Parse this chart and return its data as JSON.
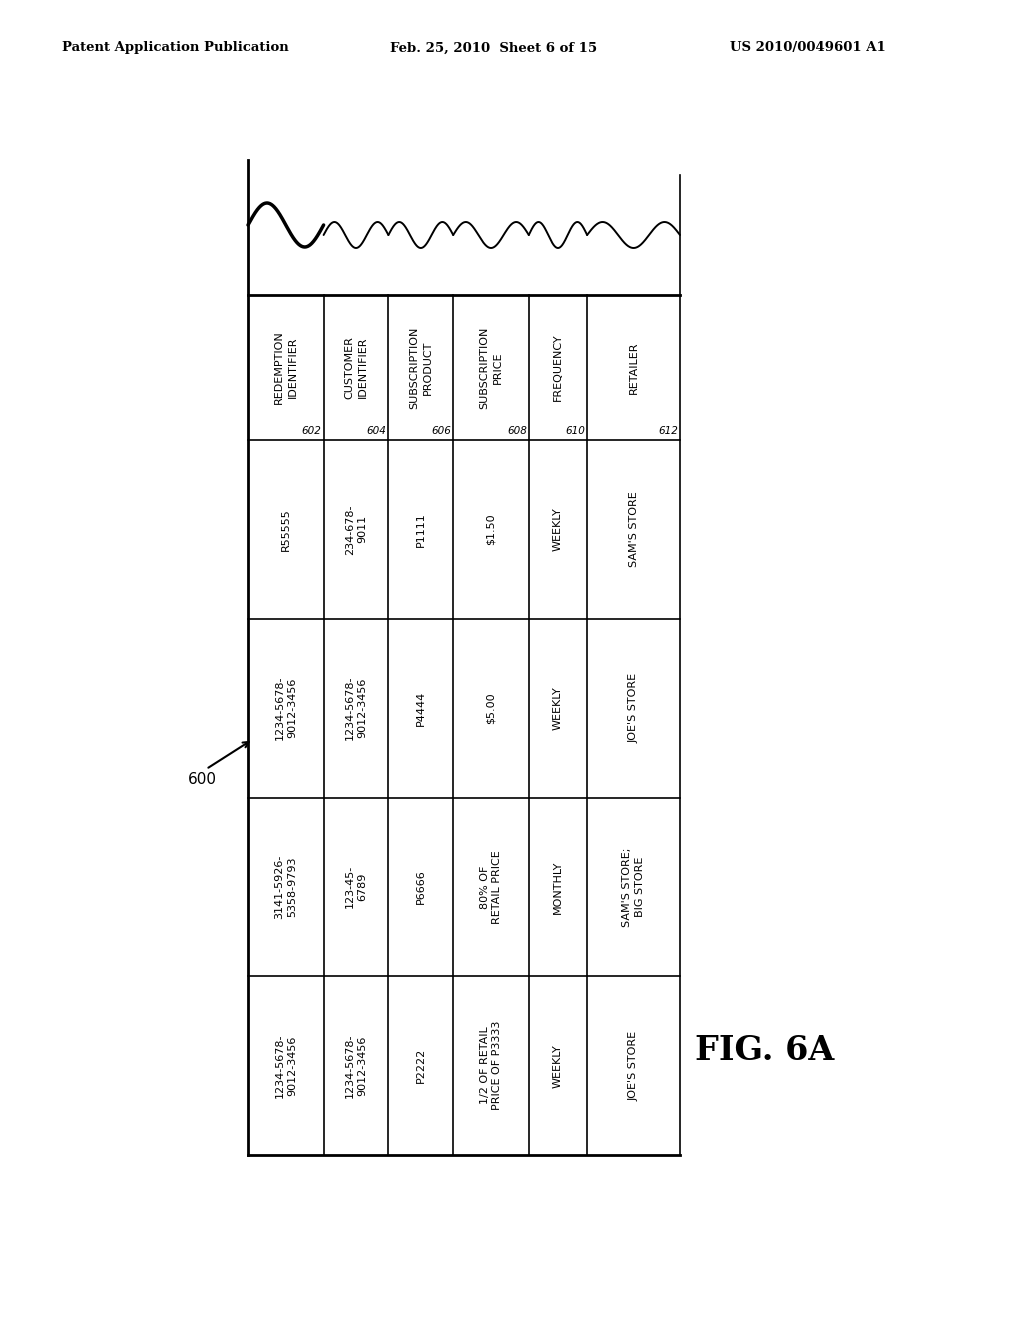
{
  "page_header_left": "Patent Application Publication",
  "page_header_center": "Feb. 25, 2010  Sheet 6 of 15",
  "page_header_right": "US 2010/0049601 A1",
  "figure_label": "FIG. 6A",
  "ref_number": "600",
  "columns": [
    {
      "label": "REDEMPTION\nIDENTIFIER",
      "ref": "602"
    },
    {
      "label": "CUSTOMER\nIDENTIFIER",
      "ref": "604"
    },
    {
      "label": "SUBSCRIPTION\nPRODUCT",
      "ref": "606"
    },
    {
      "label": "SUBSCRIPTION\nPRICE",
      "ref": "608"
    },
    {
      "label": "FREQUENCY",
      "ref": "610"
    },
    {
      "label": "RETAILER",
      "ref": "612"
    }
  ],
  "rows": [
    [
      "R55555",
      "234-678-\n9011",
      "P1111",
      "$1.50",
      "WEEKLY",
      "SAM'S STORE"
    ],
    [
      "1234-5678-\n9012-3456",
      "1234-5678-\n9012-3456",
      "P4444",
      "$5.00",
      "WEEKLY",
      "JOE'S STORE"
    ],
    [
      "3141-5926-\n5358-9793",
      "123-45-\n6789",
      "P6666",
      "80% OF\nRETAIL PRICE",
      "MONTHLY",
      "SAM'S STORE;\nBIG STORE"
    ],
    [
      "1234-5678-\n9012-3456",
      "1234-5678-\n9012-3456",
      "P2222",
      "1/2 OF RETAIL\nPRICE OF P3333",
      "WEEKLY",
      "JOE'S STORE"
    ]
  ],
  "bg_color": "#ffffff",
  "line_color": "#000000",
  "text_color": "#000000"
}
